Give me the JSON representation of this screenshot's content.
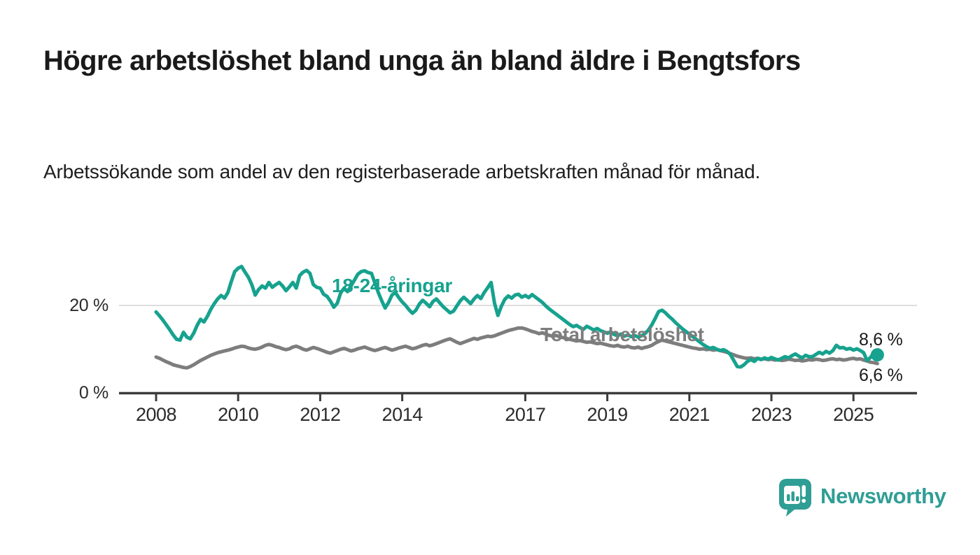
{
  "header": {
    "title": "Högre arbetslöshet bland unga än bland äldre i Bengtsfors",
    "subtitle": "Arbetssökande som andel av den registerbaserade arbetskraften månad för månad."
  },
  "colors": {
    "accent_teal": "#16a28e",
    "series_gray": "#7d7d7d",
    "brand_teal": "#2f9e95",
    "gridline": "#dedede",
    "axis": "#3c3c3c",
    "text_dark": "#1a1a1a"
  },
  "footer": {
    "brand": "Newsworthy",
    "logo_icon": "map-pin-bar-chart-icon"
  },
  "chart_data": {
    "type": "line",
    "title": "Högre arbetslöshet bland unga än bland äldre i Bengtsfors",
    "subtitle": "Arbetssökande som andel av den registerbaserade arbetskraften månad för månad.",
    "unit": "%",
    "x_start": 2008.0,
    "x_months": 212,
    "x_range_note": "monthly values Jan 2008 - Aug 2025, values estimated from pixels",
    "x_ticks": [
      2008,
      2010,
      2012,
      2014,
      2017,
      2019,
      2021,
      2023,
      2025
    ],
    "x_tick_labels": [
      "2008",
      "2010",
      "2012",
      "2014",
      "2017",
      "2019",
      "2021",
      "2023",
      "2025"
    ],
    "ylim": [
      0,
      30
    ],
    "y_gridlines": [
      0,
      20
    ],
    "y_axis_labels": {
      "top": "20 %",
      "bottom": "0 %"
    },
    "grid": "horizontal-only",
    "legend_position": "inline-annotations",
    "end_labels": {
      "young": "8,6 %",
      "total": "6,6 %"
    },
    "end_values": {
      "young": 8.6,
      "total": 6.6
    },
    "series": [
      {
        "name": "Total arbetslöshet",
        "color": "#7d7d7d",
        "values": [
          8.1,
          7.8,
          7.4,
          7.0,
          6.7,
          6.3,
          6.1,
          5.9,
          5.7,
          5.6,
          5.9,
          6.3,
          6.8,
          7.3,
          7.7,
          8.1,
          8.5,
          8.8,
          9.1,
          9.3,
          9.5,
          9.7,
          9.9,
          10.2,
          10.4,
          10.6,
          10.5,
          10.2,
          10.0,
          9.9,
          10.1,
          10.4,
          10.8,
          11.0,
          10.8,
          10.5,
          10.3,
          10.0,
          9.8,
          10.0,
          10.4,
          10.6,
          10.3,
          9.9,
          9.7,
          10.0,
          10.3,
          10.1,
          9.8,
          9.5,
          9.2,
          9.0,
          9.3,
          9.6,
          9.9,
          10.1,
          9.8,
          9.5,
          9.7,
          10.0,
          10.2,
          10.4,
          10.1,
          9.8,
          9.6,
          9.8,
          10.1,
          10.3,
          10.0,
          9.7,
          9.9,
          10.2,
          10.4,
          10.6,
          10.3,
          10.0,
          10.2,
          10.5,
          10.8,
          11.0,
          10.7,
          10.9,
          11.2,
          11.5,
          11.8,
          12.1,
          12.3,
          11.9,
          11.5,
          11.2,
          11.5,
          11.8,
          12.1,
          12.4,
          12.2,
          12.5,
          12.7,
          12.9,
          12.8,
          13.0,
          13.3,
          13.6,
          13.9,
          14.2,
          14.4,
          14.6,
          14.8,
          14.8,
          14.6,
          14.3,
          14.0,
          13.8,
          13.5,
          13.7,
          13.4,
          13.1,
          12.9,
          13.1,
          12.8,
          12.6,
          12.4,
          12.2,
          12.0,
          11.8,
          11.9,
          11.7,
          11.5,
          11.6,
          11.4,
          11.2,
          11.3,
          11.1,
          10.9,
          10.7,
          10.6,
          10.8,
          10.5,
          10.4,
          10.6,
          10.3,
          10.2,
          10.4,
          10.1,
          10.3,
          10.5,
          10.8,
          11.3,
          11.7,
          12.0,
          11.8,
          11.6,
          11.4,
          11.2,
          11.0,
          10.8,
          10.6,
          10.4,
          10.2,
          10.1,
          9.9,
          10.0,
          9.8,
          9.9,
          9.7,
          9.8,
          9.6,
          9.4,
          9.2,
          8.9,
          8.6,
          8.3,
          8.1,
          7.9,
          7.8,
          7.9,
          7.7,
          7.8,
          7.6,
          7.7,
          7.5,
          7.6,
          7.4,
          7.5,
          7.3,
          7.4,
          7.6,
          7.5,
          7.3,
          7.4,
          7.2,
          7.3,
          7.5,
          7.4,
          7.6,
          7.5,
          7.3,
          7.4,
          7.6,
          7.7,
          7.5,
          7.6,
          7.4,
          7.5,
          7.7,
          7.8,
          7.6,
          7.7,
          7.4,
          7.2,
          6.9,
          6.8,
          6.6
        ]
      },
      {
        "name": "18-24-åringar",
        "color": "#16a28e",
        "values": [
          18.5,
          17.6,
          16.6,
          15.5,
          14.4,
          13.2,
          12.2,
          12.0,
          13.8,
          12.7,
          12.3,
          13.6,
          15.4,
          16.8,
          16.2,
          17.5,
          19.1,
          20.4,
          21.5,
          22.3,
          21.7,
          23.0,
          25.5,
          27.8,
          28.6,
          29.0,
          27.7,
          26.5,
          24.8,
          22.4,
          23.7,
          24.5,
          24.0,
          25.3,
          24.2,
          24.8,
          25.3,
          24.5,
          23.4,
          24.3,
          25.3,
          24.0,
          26.9,
          27.7,
          28.1,
          27.4,
          24.8,
          24.2,
          24.0,
          22.6,
          22.1,
          21.0,
          19.6,
          20.5,
          22.9,
          24.0,
          23.2,
          24.5,
          25.8,
          27.2,
          27.8,
          28.0,
          27.6,
          27.4,
          25.2,
          23.0,
          21.1,
          19.4,
          20.7,
          22.4,
          23.0,
          21.8,
          20.8,
          20.0,
          19.0,
          18.2,
          18.9,
          20.3,
          21.2,
          20.5,
          19.7,
          20.9,
          21.5,
          20.6,
          19.7,
          19.0,
          18.3,
          18.7,
          19.9,
          21.1,
          21.9,
          21.2,
          20.4,
          21.5,
          22.3,
          21.6,
          23.0,
          24.1,
          25.3,
          20.5,
          17.7,
          19.8,
          21.4,
          22.2,
          21.7,
          22.4,
          22.6,
          21.9,
          22.3,
          21.8,
          22.5,
          21.9,
          21.3,
          20.7,
          19.9,
          19.2,
          18.6,
          18.0,
          17.4,
          16.8,
          16.2,
          15.6,
          15.1,
          15.4,
          14.9,
          14.5,
          15.2,
          14.8,
          14.3,
          14.7,
          14.2,
          13.9,
          13.6,
          13.9,
          13.3,
          13.0,
          13.4,
          12.9,
          13.2,
          12.8,
          13.1,
          12.7,
          13.0,
          13.5,
          14.3,
          15.5,
          17.0,
          18.6,
          18.9,
          18.3,
          17.5,
          16.8,
          16.0,
          15.3,
          14.6,
          14.0,
          13.4,
          12.8,
          12.2,
          11.6,
          11.0,
          10.5,
          10.1,
          10.3,
          9.9,
          9.6,
          9.8,
          9.4,
          8.7,
          7.3,
          5.9,
          5.8,
          6.3,
          7.1,
          7.5,
          7.1,
          7.8,
          7.5,
          7.9,
          7.6,
          8.0,
          7.7,
          7.4,
          7.8,
          8.2,
          7.9,
          8.4,
          8.8,
          8.3,
          7.9,
          8.5,
          8.2,
          8.2,
          8.7,
          9.2,
          8.8,
          9.4,
          9.0,
          9.6,
          10.8,
          10.2,
          10.3,
          9.9,
          10.1,
          9.7,
          10.0,
          9.6,
          9.1,
          7.3,
          8.0,
          9.2,
          8.6
        ]
      }
    ]
  }
}
